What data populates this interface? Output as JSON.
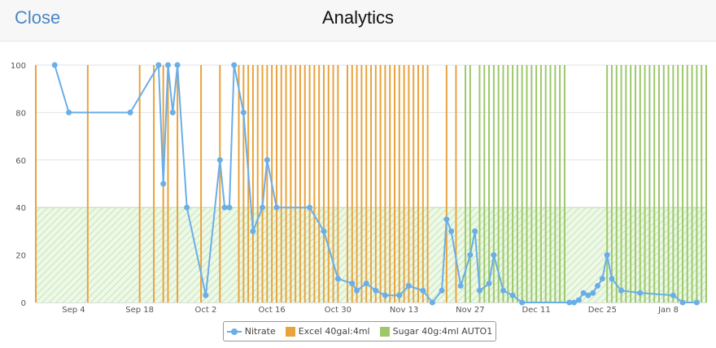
{
  "header": {
    "close_label": "Close",
    "title": "Analytics"
  },
  "colors": {
    "nitrate": "#6aaee8",
    "excel": "#e8a33d",
    "sugar": "#9cc86a",
    "target_band": "#a6d98a"
  },
  "chart_data": {
    "type": "line",
    "ylim": [
      0,
      100
    ],
    "yticks": [
      0,
      20,
      40,
      60,
      80,
      100
    ],
    "xlim": [
      "2017-08-27",
      "2018-01-16"
    ],
    "xticks": [
      {
        "label": "Sep 4",
        "date": "2017-09-04"
      },
      {
        "label": "Sep 18",
        "date": "2017-09-18"
      },
      {
        "label": "Oct 2",
        "date": "2017-10-02"
      },
      {
        "label": "Oct 16",
        "date": "2017-10-16"
      },
      {
        "label": "Oct 30",
        "date": "2017-10-30"
      },
      {
        "label": "Nov 13",
        "date": "2017-11-13"
      },
      {
        "label": "Nov 27",
        "date": "2017-11-27"
      },
      {
        "label": "Dec 11",
        "date": "2017-12-11"
      },
      {
        "label": "Dec 25",
        "date": "2017-12-25"
      },
      {
        "label": "Jan 8",
        "date": "2018-01-08"
      }
    ],
    "target_band": [
      0,
      40
    ],
    "legend": [
      "Nitrate",
      "Excel 40gal:4ml",
      "Sugar 40g:4ml AUTO1"
    ],
    "series": [
      {
        "name": "Nitrate",
        "points": [
          [
            "2017-08-31",
            100
          ],
          [
            "2017-09-03",
            80
          ],
          [
            "2017-09-16",
            80
          ],
          [
            "2017-09-22",
            100
          ],
          [
            "2017-09-23",
            50
          ],
          [
            "2017-09-24",
            100
          ],
          [
            "2017-09-25",
            80
          ],
          [
            "2017-09-26",
            100
          ],
          [
            "2017-09-28",
            40
          ],
          [
            "2017-10-02",
            3
          ],
          [
            "2017-10-05",
            60
          ],
          [
            "2017-10-06",
            40
          ],
          [
            "2017-10-07",
            40
          ],
          [
            "2017-10-08",
            100
          ],
          [
            "2017-10-10",
            80
          ],
          [
            "2017-10-12",
            30
          ],
          [
            "2017-10-14",
            40
          ],
          [
            "2017-10-15",
            60
          ],
          [
            "2017-10-17",
            40
          ],
          [
            "2017-10-24",
            40
          ],
          [
            "2017-10-27",
            30
          ],
          [
            "2017-10-30",
            10
          ],
          [
            "2017-11-02",
            8
          ],
          [
            "2017-11-03",
            5
          ],
          [
            "2017-11-05",
            8
          ],
          [
            "2017-11-07",
            5
          ],
          [
            "2017-11-09",
            3
          ],
          [
            "2017-11-12",
            3
          ],
          [
            "2017-11-14",
            7
          ],
          [
            "2017-11-17",
            5
          ],
          [
            "2017-11-19",
            0
          ],
          [
            "2017-11-21",
            5
          ],
          [
            "2017-11-22",
            35
          ],
          [
            "2017-11-23",
            30
          ],
          [
            "2017-11-25",
            7
          ],
          [
            "2017-11-27",
            20
          ],
          [
            "2017-11-28",
            30
          ],
          [
            "2017-11-29",
            5
          ],
          [
            "2017-12-01",
            8
          ],
          [
            "2017-12-02",
            20
          ],
          [
            "2017-12-04",
            5
          ],
          [
            "2017-12-06",
            3
          ],
          [
            "2017-12-08",
            0
          ],
          [
            "2017-12-18",
            0
          ],
          [
            "2017-12-19",
            0
          ],
          [
            "2017-12-20",
            1
          ],
          [
            "2017-12-21",
            4
          ],
          [
            "2017-12-22",
            3
          ],
          [
            "2017-12-23",
            4
          ],
          [
            "2017-12-24",
            7
          ],
          [
            "2017-12-25",
            10
          ],
          [
            "2017-12-26",
            20
          ],
          [
            "2017-12-27",
            10
          ],
          [
            "2017-12-29",
            5
          ],
          [
            "2018-01-02",
            4
          ],
          [
            "2018-01-09",
            3
          ],
          [
            "2018-01-11",
            0
          ],
          [
            "2018-01-14",
            0
          ]
        ]
      },
      {
        "name": "Excel 40gal:4ml",
        "type": "event",
        "dates": [
          "2017-08-27",
          "2017-09-07",
          "2017-09-18",
          "2017-09-21",
          "2017-09-23",
          "2017-09-24",
          "2017-09-26",
          "2017-10-01",
          "2017-10-05",
          "2017-10-09",
          "2017-10-10",
          "2017-10-11",
          "2017-10-12",
          "2017-10-13",
          "2017-10-14",
          "2017-10-15",
          "2017-10-16",
          "2017-10-17",
          "2017-10-18",
          "2017-10-19",
          "2017-10-20",
          "2017-10-21",
          "2017-10-22",
          "2017-10-23",
          "2017-10-24",
          "2017-10-25",
          "2017-10-26",
          "2017-10-27",
          "2017-10-28",
          "2017-10-29",
          "2017-10-30",
          "2017-11-01",
          "2017-11-02",
          "2017-11-03",
          "2017-11-04",
          "2017-11-05",
          "2017-11-06",
          "2017-11-07",
          "2017-11-08",
          "2017-11-09",
          "2017-11-10",
          "2017-11-11",
          "2017-11-12",
          "2017-11-13",
          "2017-11-14",
          "2017-11-15",
          "2017-11-16",
          "2017-11-17",
          "2017-11-18",
          "2017-11-22",
          "2017-11-24"
        ]
      },
      {
        "name": "Sugar 40g:4ml AUTO1",
        "type": "event",
        "dates": [
          "2017-11-26",
          "2017-11-27",
          "2017-11-29",
          "2017-11-30",
          "2017-12-01",
          "2017-12-02",
          "2017-12-03",
          "2017-12-04",
          "2017-12-05",
          "2017-12-06",
          "2017-12-07",
          "2017-12-08",
          "2017-12-09",
          "2017-12-10",
          "2017-12-11",
          "2017-12-12",
          "2017-12-13",
          "2017-12-14",
          "2017-12-15",
          "2017-12-16",
          "2017-12-17",
          "2017-12-26",
          "2017-12-27",
          "2017-12-28",
          "2017-12-29",
          "2017-12-30",
          "2017-12-31",
          "2018-01-01",
          "2018-01-02",
          "2018-01-03",
          "2018-01-04",
          "2018-01-05",
          "2018-01-06",
          "2018-01-07",
          "2018-01-08",
          "2018-01-09",
          "2018-01-10",
          "2018-01-11",
          "2018-01-12",
          "2018-01-13",
          "2018-01-14",
          "2018-01-15",
          "2018-01-16"
        ]
      }
    ]
  }
}
